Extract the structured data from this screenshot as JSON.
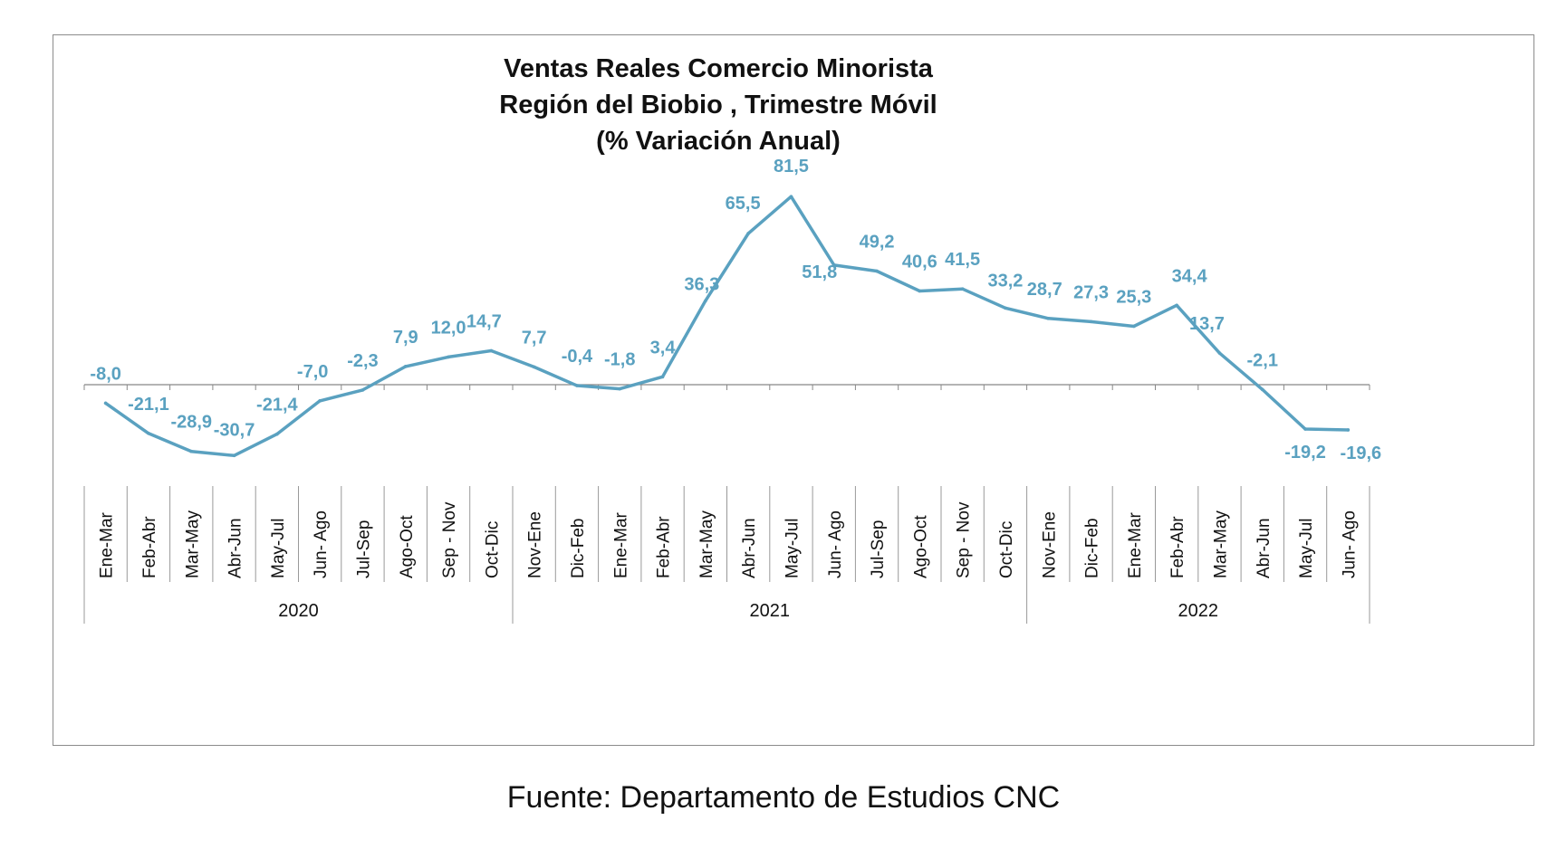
{
  "chart_data": {
    "type": "line",
    "title_lines": [
      "Ventas Reales Comercio Minorista",
      "Región del Biobio , Trimestre Móvil",
      "(% Variación Anual)"
    ],
    "categories": [
      "Ene-Mar",
      "Feb-Abr",
      "Mar-May",
      "Abr-Jun",
      "May-Jul",
      "Jun- Ago",
      "Jul-Sep",
      "Ago-Oct",
      "Sep - Nov",
      "Oct-Dic",
      "Nov-Ene",
      "Dic-Feb",
      "Ene-Mar",
      "Feb-Abr",
      "Mar-May",
      "Abr-Jun",
      "May-Jul",
      "Jun- Ago",
      "Jul-Sep",
      "Ago-Oct",
      "Sep - Nov",
      "Oct-Dic",
      "Nov-Ene",
      "Dic-Feb",
      "Ene-Mar",
      "Feb-Abr",
      "Mar-May",
      "Abr-Jun",
      "May-Jul",
      "Jun- Ago"
    ],
    "values": [
      -8.0,
      -21.1,
      -28.9,
      -30.7,
      -21.4,
      -7.0,
      -2.3,
      7.9,
      12.0,
      14.7,
      7.7,
      -0.4,
      -1.8,
      3.4,
      36.3,
      65.5,
      81.5,
      51.8,
      49.2,
      40.6,
      41.5,
      33.2,
      28.7,
      27.3,
      25.3,
      34.4,
      13.7,
      -2.1,
      -19.2,
      -19.6
    ],
    "value_labels": [
      "-8,0",
      "-21,1",
      "-28,9",
      "-30,7",
      "-21,4",
      "-7,0",
      "-2,3",
      "7,9",
      "12,0",
      "14,7",
      "7,7",
      "-0,4",
      "-1,8",
      "3,4",
      "36,3",
      "65,5",
      "81,5",
      "51,8",
      "49,2",
      "40,6",
      "41,5",
      "33,2",
      "28,7",
      "27,3",
      "25,3",
      "34,4",
      "13,7",
      "-2,1",
      "-19,2",
      "-19,6"
    ],
    "groups": [
      {
        "label": "2020",
        "count": 10
      },
      {
        "label": "2021",
        "count": 12
      },
      {
        "label": "2022",
        "count": 8
      }
    ],
    "ylim": [
      -40,
      95
    ],
    "grid": false,
    "line_color": "#5aa1c0"
  },
  "source_note": "Fuente: Departamento de Estudios CNC"
}
